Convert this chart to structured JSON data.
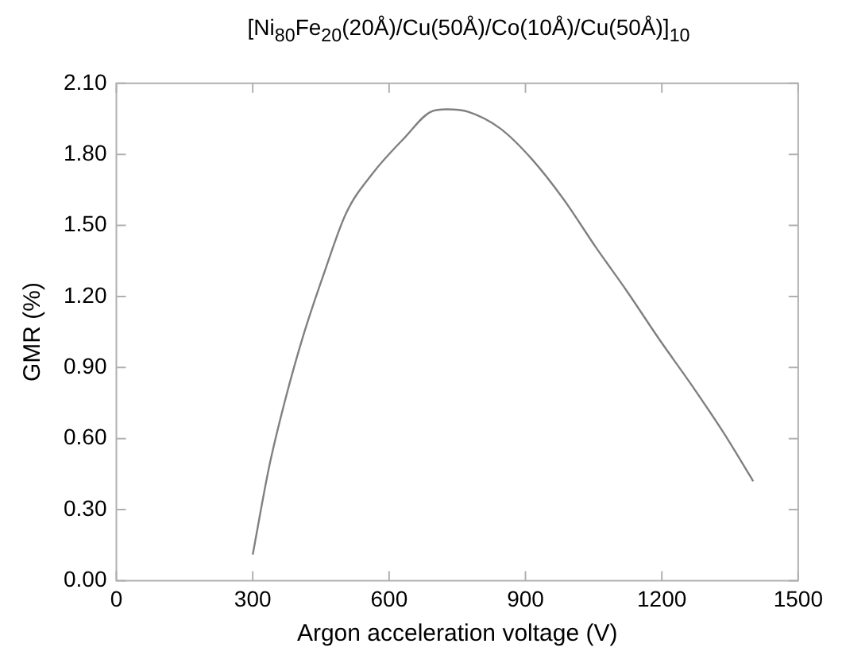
{
  "chart_data": {
    "type": "line",
    "title": "[Ni$_{80}$Fe$_{20}$(20Å)/Cu(50Å)/Co(10Å)/Cu(50Å)]$_{10}$",
    "xlabel": "Argon acceleration voltage (V)",
    "ylabel": "GMR (%)",
    "x": [
      300,
      336,
      371,
      412,
      459,
      505,
      564,
      634,
      692,
      727,
      774,
      844,
      914,
      984,
      1054,
      1124,
      1194,
      1264,
      1334,
      1401
    ],
    "series": [
      {
        "color": "#808080",
        "values": [
          0.11,
          0.48,
          0.76,
          1.04,
          1.31,
          1.55,
          1.72,
          1.87,
          1.98,
          1.99,
          1.98,
          1.91,
          1.78,
          1.61,
          1.41,
          1.22,
          1.02,
          0.83,
          0.63,
          0.42
        ]
      }
    ],
    "xlim": [
      0,
      1500
    ],
    "xticks": [
      0,
      300,
      600,
      900,
      1200,
      1500
    ],
    "ylim": [
      0,
      2.1
    ],
    "yticks": [
      {
        "value": 0,
        "label": "0.00"
      },
      {
        "value": 0.3,
        "label": "0.30"
      },
      {
        "value": 0.6,
        "label": "0.60"
      },
      {
        "value": 0.9,
        "label": "0.90"
      },
      {
        "value": 1.2,
        "label": "1.20"
      },
      {
        "value": 1.5,
        "label": "1.50"
      },
      {
        "value": 1.8,
        "label": "1.80"
      },
      {
        "value": 2.1,
        "label": "2.10"
      }
    ],
    "grid": false,
    "legend": false,
    "marker": "none",
    "line_style": "solid"
  }
}
